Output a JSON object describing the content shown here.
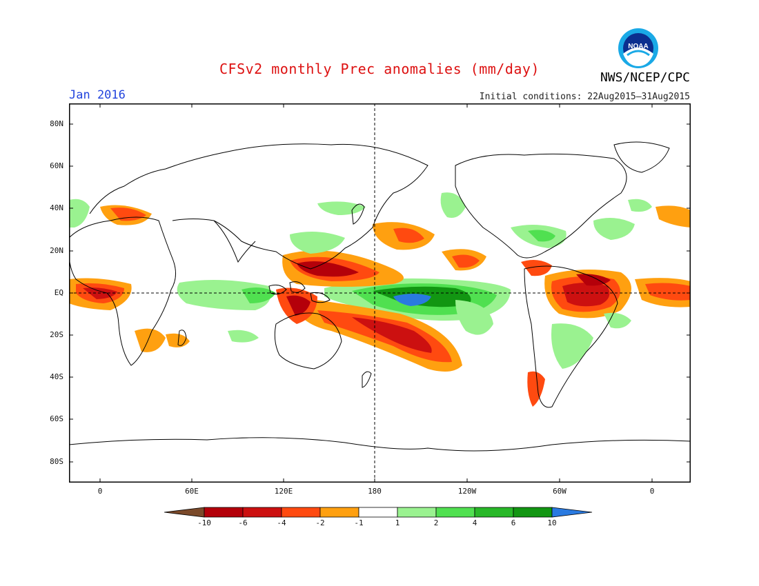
{
  "title": "CFSv2 monthly Prec anomalies (mm/day)",
  "valid_month": "Jan 2016",
  "initial_conditions": "Initial conditions: 22Aug2015–31Aug2015",
  "agency": "NWS/NCEP/CPC",
  "logo_text": "NOAA",
  "lat_labels": [
    "80N",
    "60N",
    "40N",
    "20N",
    "EQ",
    "20S",
    "40S",
    "60S",
    "80S"
  ],
  "lon_labels": [
    "0",
    "60E",
    "120E",
    "180",
    "120W",
    "60W",
    "0"
  ],
  "colorbar": {
    "labels": [
      "-10",
      "-6",
      "-4",
      "-2",
      "-1",
      "1",
      "2",
      "4",
      "6",
      "10"
    ],
    "colors": [
      "#7b4a2a",
      "#b4000a",
      "#cc1010",
      "#ff4a10",
      "#ffa010",
      "#ffffff",
      "#9af290",
      "#50e050",
      "#28b828",
      "#129612",
      "#2a7ae0"
    ]
  },
  "map_region": {
    "lon_range": [
      -20,
      380
    ],
    "lat_range": [
      -90,
      90
    ],
    "grid": "dashed lines at equator and 180"
  }
}
